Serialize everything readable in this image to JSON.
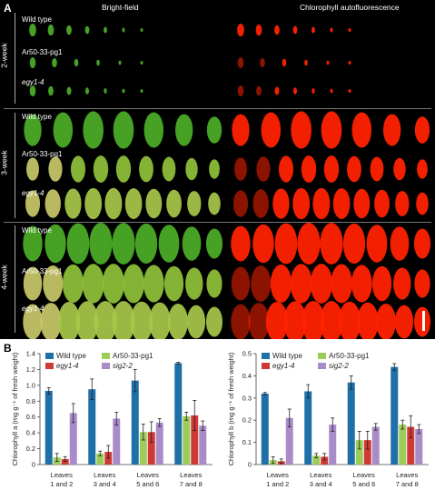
{
  "panel_a": {
    "letter": "A",
    "titles": {
      "bright": "Bright-field",
      "fluor": "Chlorophyll autofluorescence"
    },
    "groups": [
      {
        "week": "2-week",
        "rows": [
          {
            "label": "Wild type",
            "italic": false,
            "n": 7
          },
          {
            "label": "Ar50-33-pg1",
            "italic": false,
            "n": 6
          },
          {
            "label": "egy1-4",
            "italic": true,
            "n": 7
          }
        ]
      },
      {
        "week": "3-week",
        "rows": [
          {
            "label": "Wild type",
            "italic": false,
            "n": 7
          },
          {
            "label": "Ar50-33-pg1",
            "italic": false,
            "n": 9
          },
          {
            "label": "egy1-4",
            "italic": true,
            "n": 10
          }
        ]
      },
      {
        "week": "4-week",
        "rows": [
          {
            "label": "Wild type",
            "italic": false,
            "n": 9
          },
          {
            "label": "Ar50-33-pg1",
            "italic": false,
            "n": 10
          },
          {
            "label": "egy1-4",
            "italic": true,
            "n": 11
          }
        ]
      }
    ]
  },
  "panel_b": {
    "letter": "B"
  },
  "colors": {
    "wild_type": "#1f6fa8",
    "ar50": "#9ccc5a",
    "egy1": "#cf3a36",
    "sig2": "#a98bc7",
    "fluor_leaf": "#ff2200",
    "bright_leaf": "#4caf28"
  },
  "chart_data": [
    {
      "type": "bar",
      "categories": [
        "Leaves 1 and 2",
        "Leaves 3 and 4",
        "Leaves 5 and 6",
        "Leaves 7 and 8"
      ],
      "category_lines": [
        [
          "Leaves",
          "1 and 2"
        ],
        [
          "Leaves",
          "3 and 4"
        ],
        [
          "Leaves",
          "5 and 6"
        ],
        [
          "Leaves",
          "7 and 8"
        ]
      ],
      "ylabel": "Chlorophyll a (mg g⁻¹ of fresh weight)",
      "ylim": [
        0,
        1.4
      ],
      "yticks": [
        "0",
        "0.2",
        "0.4",
        "0.6",
        "0.8",
        "1.0",
        "1.2",
        "1.4"
      ],
      "ytick_values": [
        0,
        0.2,
        0.4,
        0.6,
        0.8,
        1.0,
        1.2,
        1.4
      ],
      "series": [
        {
          "name": "Wild type",
          "italic": false,
          "values": [
            0.93,
            0.95,
            1.06,
            1.28
          ],
          "errors": [
            0.04,
            0.13,
            0.14,
            0.01
          ]
        },
        {
          "name": "Ar50-33-pg1",
          "italic": false,
          "values": [
            0.09,
            0.14,
            0.41,
            0.61
          ],
          "errors": [
            0.05,
            0.03,
            0.1,
            0.05
          ]
        },
        {
          "name": "egy1-4",
          "italic": true,
          "values": [
            0.07,
            0.16,
            0.41,
            0.62
          ],
          "errors": [
            0.03,
            0.08,
            0.13,
            0.19
          ]
        },
        {
          "name": "sig2-2",
          "italic": true,
          "values": [
            0.65,
            0.58,
            0.53,
            0.49
          ],
          "errors": [
            0.12,
            0.08,
            0.05,
            0.06
          ]
        }
      ]
    },
    {
      "type": "bar",
      "categories": [
        "Leaves 1 and 2",
        "Leaves 3 and 4",
        "Leaves 5 and 6",
        "Leaves 7 and 8"
      ],
      "category_lines": [
        [
          "Leaves",
          "1 and 2"
        ],
        [
          "Leaves",
          "3 and 4"
        ],
        [
          "Leaves",
          "5 and 6"
        ],
        [
          "Leaves",
          "7 and 8"
        ]
      ],
      "ylabel": "Chlorophyll b (mg g⁻¹ of fresh weight)",
      "ylim": [
        0,
        0.5
      ],
      "yticks": [
        "0",
        "0.1",
        "0.2",
        "0.3",
        "0.4",
        "0.5"
      ],
      "ytick_values": [
        0,
        0.1,
        0.2,
        0.3,
        0.4,
        0.5
      ],
      "series": [
        {
          "name": "Wild type",
          "italic": false,
          "values": [
            0.32,
            0.33,
            0.37,
            0.44
          ],
          "errors": [
            0.005,
            0.03,
            0.03,
            0.015
          ]
        },
        {
          "name": "Ar50-33-pg1",
          "italic": false,
          "values": [
            0.02,
            0.04,
            0.11,
            0.18
          ],
          "errors": [
            0.015,
            0.01,
            0.04,
            0.02
          ]
        },
        {
          "name": "egy1-4",
          "italic": true,
          "values": [
            0.015,
            0.035,
            0.11,
            0.17
          ],
          "errors": [
            0.01,
            0.015,
            0.04,
            0.05
          ]
        },
        {
          "name": "sig2-2",
          "italic": true,
          "values": [
            0.21,
            0.18,
            0.17,
            0.16
          ],
          "errors": [
            0.04,
            0.03,
            0.015,
            0.02
          ]
        }
      ]
    }
  ]
}
